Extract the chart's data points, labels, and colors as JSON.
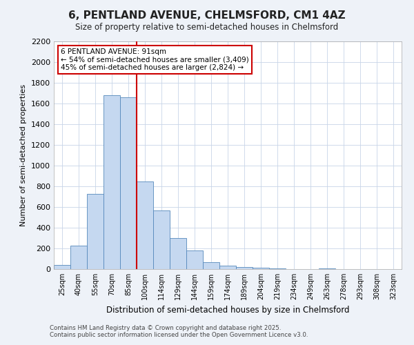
{
  "title": "6, PENTLAND AVENUE, CHELMSFORD, CM1 4AZ",
  "subtitle": "Size of property relative to semi-detached houses in Chelmsford",
  "xlabel": "Distribution of semi-detached houses by size in Chelmsford",
  "ylabel": "Number of semi-detached properties",
  "categories": [
    "25sqm",
    "40sqm",
    "55sqm",
    "70sqm",
    "85sqm",
    "100sqm",
    "114sqm",
    "129sqm",
    "144sqm",
    "159sqm",
    "174sqm",
    "189sqm",
    "204sqm",
    "219sqm",
    "234sqm",
    "249sqm",
    "263sqm",
    "278sqm",
    "293sqm",
    "308sqm",
    "323sqm"
  ],
  "values": [
    40,
    225,
    725,
    1680,
    1660,
    850,
    565,
    300,
    180,
    65,
    35,
    22,
    15,
    5,
    2,
    0,
    8,
    0,
    0,
    0,
    0
  ],
  "bar_color": "#c5d8f0",
  "bar_edge_color": "#5588bb",
  "vline_color": "#cc0000",
  "annotation_title": "6 PENTLAND AVENUE: 91sqm",
  "annotation_line1": "← 54% of semi-detached houses are smaller (3,409)",
  "annotation_line2": "45% of semi-detached houses are larger (2,824) →",
  "annotation_box_color": "#cc0000",
  "ylim": [
    0,
    2200
  ],
  "yticks": [
    0,
    200,
    400,
    600,
    800,
    1000,
    1200,
    1400,
    1600,
    1800,
    2000,
    2200
  ],
  "footer1": "Contains HM Land Registry data © Crown copyright and database right 2025.",
  "footer2": "Contains public sector information licensed under the Open Government Licence v3.0.",
  "bg_color": "#eef2f8",
  "plot_bg_color": "#ffffff",
  "grid_color": "#c8d4e8"
}
